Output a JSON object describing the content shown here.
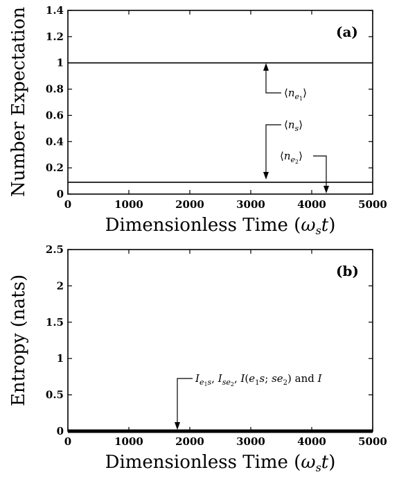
{
  "chart_data": [
    {
      "panel_label": "(a)",
      "type": "line",
      "ylabel": "Number Expectation",
      "xlabel": "Dimensionless Time (ωst)",
      "xlim": [
        0,
        5000
      ],
      "ylim": [
        0,
        1.4
      ],
      "xticks": [
        "0",
        "1000",
        "2000",
        "3000",
        "4000",
        "5000"
      ],
      "yticks": [
        "0",
        "0.2",
        "0.4",
        "0.6",
        "0.8",
        "1",
        "1.2",
        "1.4"
      ],
      "series": [
        {
          "x": [
            0,
            5000
          ],
          "y": [
            1.0,
            1.0
          ]
        },
        {
          "x": [
            0,
            5000
          ],
          "y": [
            0.09,
            0.09
          ]
        }
      ],
      "annotations": [
        {
          "text": "⟨ne1⟩",
          "points_to": {
            "x": 3250,
            "y": 1.0
          }
        },
        {
          "text": "⟨ns⟩",
          "points_to": {
            "x": 3250,
            "y": 0.09
          }
        },
        {
          "text": "⟨ne2⟩",
          "points_to": {
            "x": 4250,
            "y": 0.0
          }
        }
      ]
    },
    {
      "panel_label": "(b)",
      "type": "line",
      "ylabel": "Entropy (nats)",
      "xlabel": "Dimensionless Time (ωst)",
      "xlim": [
        0,
        5000
      ],
      "ylim": [
        0,
        2.5
      ],
      "xticks": [
        "0",
        "1000",
        "2000",
        "3000",
        "4000",
        "5000"
      ],
      "yticks": [
        "0",
        "0.5",
        "1",
        "1.5",
        "2",
        "2.5"
      ],
      "series": [
        {
          "x": [
            0,
            5000
          ],
          "y": [
            0.0,
            0.0
          ]
        }
      ],
      "annotations": [
        {
          "text": "Ie1s, Ise2, I(e1s; se2) and I",
          "points_to": {
            "x": 1800,
            "y": 0.0
          }
        }
      ]
    }
  ]
}
